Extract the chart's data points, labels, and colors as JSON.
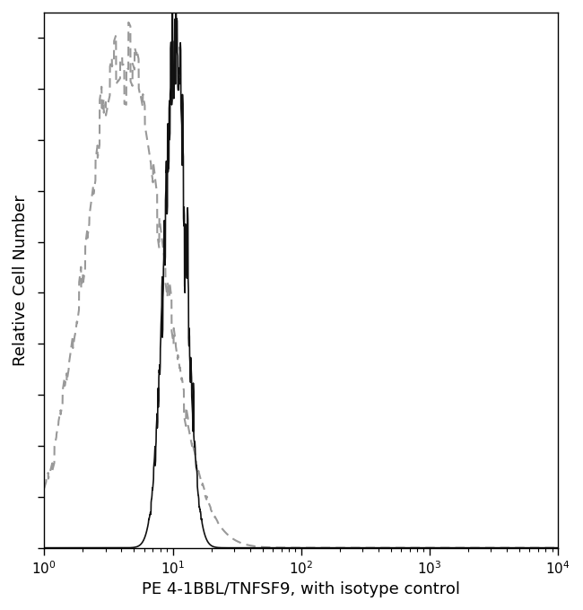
{
  "title": "",
  "xlabel": "PE 4-1BBL/TNFSF9, with isotype control",
  "ylabel": "Relative Cell Number",
  "xlim_log": [
    1,
    10000
  ],
  "ylim": [
    0,
    1.05
  ],
  "background_color": "#ffffff",
  "gray_dashed": {
    "color": "#999999",
    "linewidth": 1.5,
    "peak_x_log": 0.62,
    "peak_sigma_log": 0.3,
    "peak_height": 0.97,
    "noise_amplitude": 0.04,
    "dash_pattern": [
      5,
      3
    ]
  },
  "black_solid": {
    "color": "#111111",
    "linewidth": 1.2,
    "peak_x_log": 1.02,
    "peak_sigma_log": 0.085,
    "peak_height": 1.0,
    "noise_amplitude": 0.09
  },
  "xticks": [
    1,
    10,
    100,
    1000,
    10000
  ],
  "xtick_labels": [
    "10$^0$",
    "10$^1$",
    "10$^2$",
    "10$^3$",
    "10$^4$"
  ],
  "ytick_count": 10,
  "xlabel_fontsize": 13,
  "ylabel_fontsize": 13,
  "tick_fontsize": 11
}
